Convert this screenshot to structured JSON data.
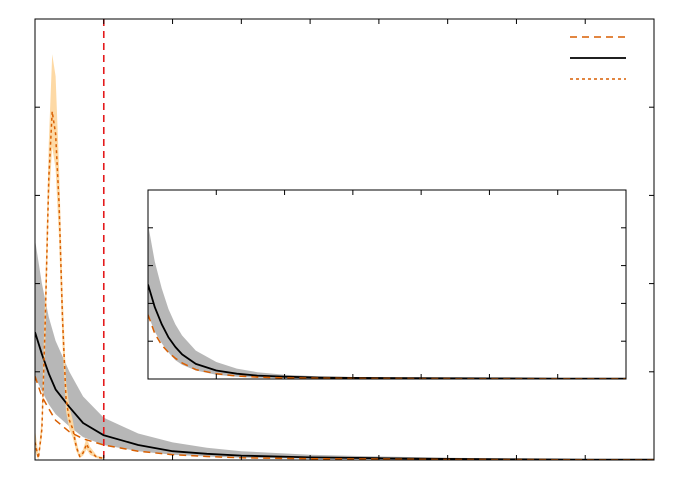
{
  "chart_data": [
    {
      "type": "line",
      "title": "",
      "xlabel": "",
      "ylabel": "",
      "xlim": [
        0,
        9
      ],
      "ylim": [
        0,
        5
      ],
      "xticks": [
        1,
        2,
        3,
        4,
        5,
        6,
        7,
        8
      ],
      "yticks": [
        1,
        2,
        3,
        4
      ],
      "grid": false,
      "legend": {
        "placement": "top-right",
        "entries": [
          {
            "name": "",
            "style": "dashed",
            "color": "#d95f02"
          },
          {
            "name": "",
            "style": "solid",
            "color": "#000000"
          },
          {
            "name": "",
            "style": "dotted",
            "color": "#d95f02"
          }
        ]
      },
      "vline": {
        "x": 1.0,
        "color": "#e41a1c",
        "style": "dashed"
      },
      "series": [
        {
          "style": "solid",
          "color": "#000000",
          "band_color": "#b3b3b3",
          "x": [
            0.0,
            0.1,
            0.2,
            0.3,
            0.5,
            0.7,
            1.0,
            1.5,
            2.0,
            2.5,
            3.0,
            4.0,
            5.0,
            6.0,
            7.0,
            8.0,
            9.0
          ],
          "y": [
            1.45,
            1.2,
            0.98,
            0.8,
            0.6,
            0.42,
            0.28,
            0.17,
            0.1,
            0.07,
            0.05,
            0.03,
            0.02,
            0.012,
            0.008,
            0.005,
            0.003
          ],
          "lower": [
            0.95,
            0.78,
            0.63,
            0.52,
            0.38,
            0.26,
            0.17,
            0.1,
            0.06,
            0.04,
            0.025,
            0.015,
            0.01,
            0.006,
            0.004,
            0.002,
            0.001
          ],
          "upper": [
            2.5,
            2.0,
            1.62,
            1.35,
            1.0,
            0.72,
            0.48,
            0.3,
            0.2,
            0.14,
            0.1,
            0.06,
            0.04,
            0.025,
            0.016,
            0.01,
            0.006
          ]
        },
        {
          "style": "dashed",
          "color": "#d95f02",
          "x": [
            0.0,
            0.1,
            0.2,
            0.3,
            0.5,
            0.7,
            1.0,
            1.5,
            2.0,
            2.5,
            3.0,
            4.0,
            5.0,
            6.0,
            7.0,
            8.0,
            9.0
          ],
          "y": [
            0.95,
            0.72,
            0.58,
            0.45,
            0.32,
            0.24,
            0.17,
            0.1,
            0.06,
            0.04,
            0.025,
            0.015,
            0.01,
            0.006,
            0.004,
            0.002,
            0.001
          ]
        },
        {
          "style": "dotted",
          "color": "#d95f02",
          "band_color": "#fdd7a0",
          "x": [
            0.0,
            0.05,
            0.1,
            0.15,
            0.2,
            0.25,
            0.3,
            0.35,
            0.4,
            0.45,
            0.5,
            0.55,
            0.6,
            0.65,
            0.7,
            0.75,
            0.8,
            0.9,
            1.0
          ],
          "y": [
            0.2,
            0.02,
            0.35,
            1.6,
            3.2,
            3.95,
            3.7,
            2.9,
            1.6,
            0.7,
            0.45,
            0.35,
            0.15,
            0.04,
            0.08,
            0.18,
            0.1,
            0.03,
            0.02
          ],
          "lower": [
            0.1,
            0.0,
            0.25,
            1.3,
            2.9,
            3.55,
            3.3,
            2.5,
            1.3,
            0.55,
            0.35,
            0.25,
            0.1,
            0.02,
            0.05,
            0.12,
            0.06,
            0.02,
            0.01
          ],
          "upper": [
            0.35,
            0.06,
            0.5,
            2.0,
            3.6,
            4.6,
            4.35,
            3.3,
            1.95,
            0.9,
            0.6,
            0.45,
            0.22,
            0.07,
            0.12,
            0.25,
            0.15,
            0.05,
            0.03
          ]
        }
      ]
    },
    {
      "type": "line",
      "title": "",
      "xlabel": "",
      "ylabel": "",
      "placement": "inset",
      "xlim": [
        0,
        7
      ],
      "ylim": [
        0,
        1.0
      ],
      "xticks": [
        1,
        2,
        3,
        4,
        5,
        6
      ],
      "yticks": [
        0.2,
        0.4,
        0.6,
        0.8
      ],
      "grid": false,
      "series": [
        {
          "style": "solid",
          "color": "#000000",
          "band_color": "#b3b3b3",
          "x": [
            0.0,
            0.1,
            0.2,
            0.3,
            0.4,
            0.5,
            0.7,
            1.0,
            1.3,
            1.6,
            2.0,
            2.5,
            3.0,
            4.0,
            5.0,
            6.0,
            7.0
          ],
          "y": [
            0.5,
            0.38,
            0.29,
            0.22,
            0.17,
            0.13,
            0.08,
            0.045,
            0.028,
            0.018,
            0.012,
            0.008,
            0.006,
            0.004,
            0.003,
            0.002,
            0.002
          ],
          "lower": [
            0.34,
            0.25,
            0.19,
            0.14,
            0.1,
            0.075,
            0.045,
            0.022,
            0.012,
            0.007,
            0.004,
            0.002,
            0.001,
            0.0,
            0.0,
            0.0,
            0.0
          ],
          "upper": [
            0.82,
            0.62,
            0.48,
            0.37,
            0.29,
            0.23,
            0.15,
            0.09,
            0.055,
            0.036,
            0.022,
            0.014,
            0.01,
            0.007,
            0.005,
            0.004,
            0.003
          ]
        },
        {
          "style": "dashed",
          "color": "#d95f02",
          "x": [
            0.0,
            0.1,
            0.2,
            0.3,
            0.4,
            0.5,
            0.7,
            1.0,
            1.3,
            1.6,
            2.0,
            2.5,
            3.0,
            4.0,
            5.0,
            6.0,
            7.0
          ],
          "y": [
            0.34,
            0.24,
            0.18,
            0.14,
            0.11,
            0.085,
            0.05,
            0.028,
            0.016,
            0.01,
            0.006,
            0.004,
            0.003,
            0.002,
            0.001,
            0.001,
            0.001
          ]
        }
      ]
    }
  ]
}
